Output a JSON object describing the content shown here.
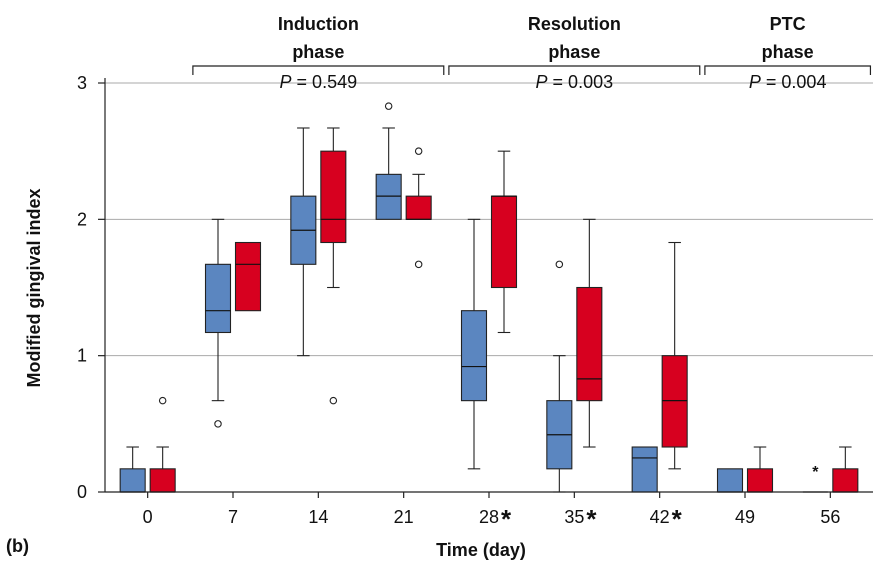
{
  "panel_label": "(b)",
  "colors": {
    "series_a": "#5b86c0",
    "series_b": "#d7001f"
  },
  "chart_data": {
    "type": "box",
    "xlabel": "Time (day)",
    "ylabel": "Modified gingival index",
    "ylim": [
      0,
      3
    ],
    "yticks": [
      0,
      1,
      2,
      3
    ],
    "grid": true,
    "categories": [
      "0",
      "7",
      "14",
      "21",
      "28",
      "35",
      "42",
      "49",
      "56"
    ],
    "significant": [
      "28",
      "35",
      "42"
    ],
    "significance_marker": "*",
    "phases": [
      {
        "label_line1": "Induction",
        "label_line2": "phase",
        "p_prefix": "P",
        "p_value": "= 0.549",
        "from": "7",
        "to": "21"
      },
      {
        "label_line1": "Resolution",
        "label_line2": "phase",
        "p_prefix": "P",
        "p_value": "= 0.003",
        "from": "28",
        "to": "42"
      },
      {
        "label_line1": "PTC",
        "label_line2": "phase",
        "p_prefix": "P",
        "p_value": "= 0.004",
        "from": "49",
        "to": "56"
      }
    ],
    "series": [
      {
        "color": "#5b86c0",
        "boxes": [
          {
            "min": 0,
            "q1": 0,
            "median": 0,
            "q3": 0.17,
            "max": 0.33,
            "outliers": []
          },
          {
            "min": 0.67,
            "q1": 1.17,
            "median": 1.33,
            "q3": 1.67,
            "max": 2.0,
            "outliers": [
              0.5
            ]
          },
          {
            "min": 1.0,
            "q1": 1.67,
            "median": 1.92,
            "q3": 2.17,
            "max": 2.67,
            "outliers": []
          },
          {
            "min": 2.0,
            "q1": 2.0,
            "median": 2.17,
            "q3": 2.33,
            "max": 2.67,
            "outliers": [
              2.83
            ]
          },
          {
            "min": 0.17,
            "q1": 0.67,
            "median": 0.92,
            "q3": 1.33,
            "max": 2.0,
            "outliers": []
          },
          {
            "min": 0,
            "q1": 0.17,
            "median": 0.42,
            "q3": 0.67,
            "max": 1.0,
            "outliers": [
              1.67
            ]
          },
          {
            "min": 0,
            "q1": 0,
            "median": 0.25,
            "q3": 0.33,
            "max": 0.33,
            "outliers": []
          },
          {
            "min": 0,
            "q1": 0,
            "median": 0,
            "q3": 0.17,
            "max": 0.17,
            "outliers": []
          },
          {
            "min": 0,
            "q1": 0,
            "median": 0,
            "q3": 0,
            "max": 0,
            "outliers": [],
            "extreme": 0.17
          }
        ]
      },
      {
        "color": "#d7001f",
        "boxes": [
          {
            "min": 0,
            "q1": 0,
            "median": 0,
            "q3": 0.17,
            "max": 0.33,
            "outliers": [
              0.67
            ]
          },
          {
            "min": 1.33,
            "q1": 1.33,
            "median": 1.67,
            "q3": 1.83,
            "max": 1.83,
            "outliers": []
          },
          {
            "min": 1.5,
            "q1": 1.83,
            "median": 2.0,
            "q3": 2.5,
            "max": 2.67,
            "outliers": [
              0.67
            ]
          },
          {
            "min": 2.0,
            "q1": 2.0,
            "median": 2.0,
            "q3": 2.17,
            "max": 2.33,
            "outliers": [
              2.5,
              1.67
            ]
          },
          {
            "min": 1.17,
            "q1": 1.5,
            "median": 2.17,
            "q3": 2.17,
            "max": 2.5,
            "outliers": []
          },
          {
            "min": 0.33,
            "q1": 0.67,
            "median": 0.83,
            "q3": 1.5,
            "max": 2.0,
            "outliers": []
          },
          {
            "min": 0.17,
            "q1": 0.33,
            "median": 0.67,
            "q3": 1.0,
            "max": 1.83,
            "outliers": []
          },
          {
            "min": 0,
            "q1": 0,
            "median": 0,
            "q3": 0.17,
            "max": 0.33,
            "outliers": []
          },
          {
            "min": 0,
            "q1": 0,
            "median": 0,
            "q3": 0.17,
            "max": 0.33,
            "outliers": []
          }
        ]
      }
    ]
  }
}
